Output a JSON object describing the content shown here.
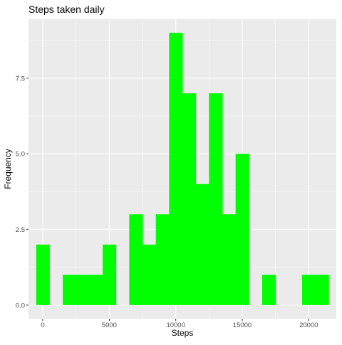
{
  "chart_data": {
    "type": "bar",
    "title": "Steps taken daily",
    "xlabel": "Steps",
    "ylabel": "Frequency",
    "bin_width": 1000,
    "bins": [
      {
        "start": -500,
        "end": 500,
        "count": 2
      },
      {
        "start": 500,
        "end": 1500,
        "count": 0
      },
      {
        "start": 1500,
        "end": 2500,
        "count": 1
      },
      {
        "start": 2500,
        "end": 3500,
        "count": 1
      },
      {
        "start": 3500,
        "end": 4500,
        "count": 1
      },
      {
        "start": 4500,
        "end": 5500,
        "count": 2
      },
      {
        "start": 5500,
        "end": 6500,
        "count": 0
      },
      {
        "start": 6500,
        "end": 7500,
        "count": 3
      },
      {
        "start": 7500,
        "end": 8500,
        "count": 2
      },
      {
        "start": 8500,
        "end": 9500,
        "count": 3
      },
      {
        "start": 9500,
        "end": 10500,
        "count": 9
      },
      {
        "start": 10500,
        "end": 11500,
        "count": 7
      },
      {
        "start": 11500,
        "end": 12500,
        "count": 4
      },
      {
        "start": 12500,
        "end": 13500,
        "count": 7
      },
      {
        "start": 13500,
        "end": 14500,
        "count": 3
      },
      {
        "start": 14500,
        "end": 15500,
        "count": 5
      },
      {
        "start": 15500,
        "end": 16500,
        "count": 0
      },
      {
        "start": 16500,
        "end": 17500,
        "count": 1
      },
      {
        "start": 17500,
        "end": 18500,
        "count": 0
      },
      {
        "start": 18500,
        "end": 19500,
        "count": 0
      },
      {
        "start": 19500,
        "end": 20500,
        "count": 1
      },
      {
        "start": 20500,
        "end": 21500,
        "count": 1
      }
    ],
    "xlim": [
      -1075,
      22075
    ],
    "ylim": [
      -0.45,
      9.45
    ],
    "x_ticks": [
      0,
      5000,
      10000,
      15000,
      20000
    ],
    "x_tick_labels": [
      "0",
      "5000",
      "10000",
      "15000",
      "20000"
    ],
    "y_ticks": [
      0,
      2.5,
      5,
      7.5
    ],
    "y_tick_labels": [
      "0.0",
      "2.5",
      "5.0",
      "7.5"
    ],
    "grid": true,
    "colors": {
      "bar_fill": "#00ff00",
      "panel_background": "#ebebeb",
      "grid_major": "#ffffff",
      "text": "#000000",
      "tick_text": "#4d4d4d",
      "tick_mark": "#333333"
    }
  }
}
